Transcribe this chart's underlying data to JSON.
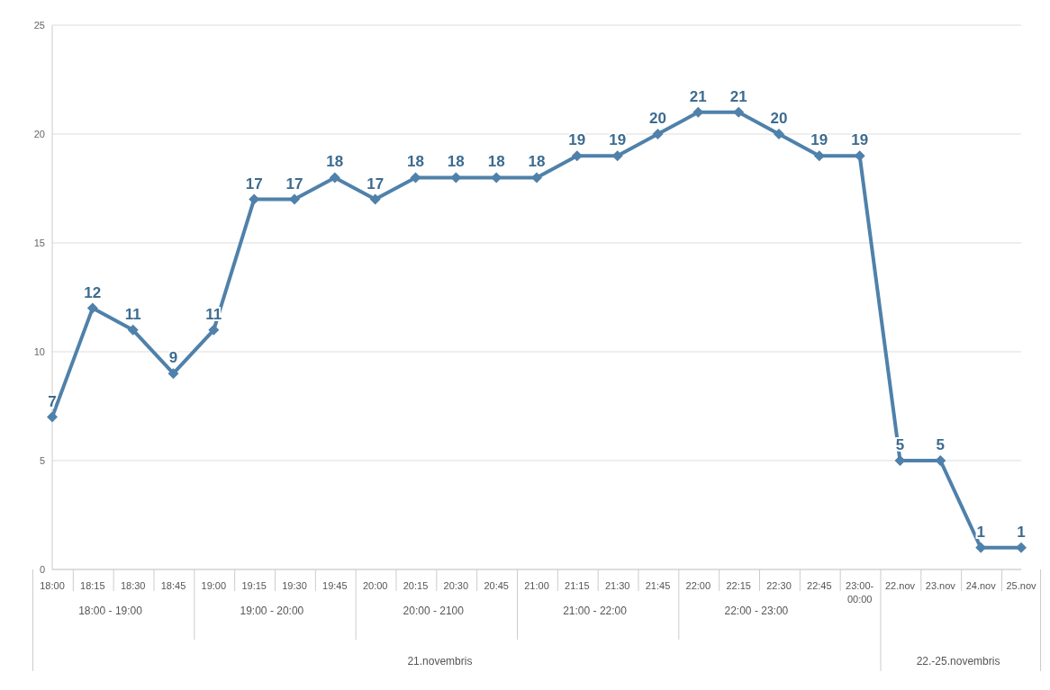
{
  "chart_data": {
    "type": "line",
    "categories": [
      "18:00",
      "18:15",
      "18:30",
      "18:45",
      "19:00",
      "19:15",
      "19:30",
      "19:45",
      "20:00",
      "20:15",
      "20:30",
      "20:45",
      "21:00",
      "21:15",
      "21:30",
      "21:45",
      "22:00",
      "22:15",
      "22:30",
      "22:45",
      "23:00-00:00",
      "22.nov",
      "23.nov",
      "24.nov",
      "25.nov"
    ],
    "values": [
      7,
      12,
      11,
      9,
      11,
      17,
      17,
      18,
      17,
      18,
      18,
      18,
      18,
      19,
      19,
      20,
      21,
      21,
      20,
      19,
      19,
      5,
      5,
      1,
      1
    ],
    "color": "#4f81aa",
    "marker": "diamond",
    "line_style": "solid",
    "data_labels": true,
    "ylim": [
      0,
      25
    ],
    "yticks": [
      0,
      5,
      10,
      15,
      20,
      25
    ],
    "grid": "y",
    "annotations": [
      "18:00 - 19:00",
      "19:00 - 20:00",
      "20:00 - 2100",
      "21:00 - 22:00",
      "22:00 - 23:00",
      "21.novembris",
      "22.-25.novembris"
    ]
  }
}
